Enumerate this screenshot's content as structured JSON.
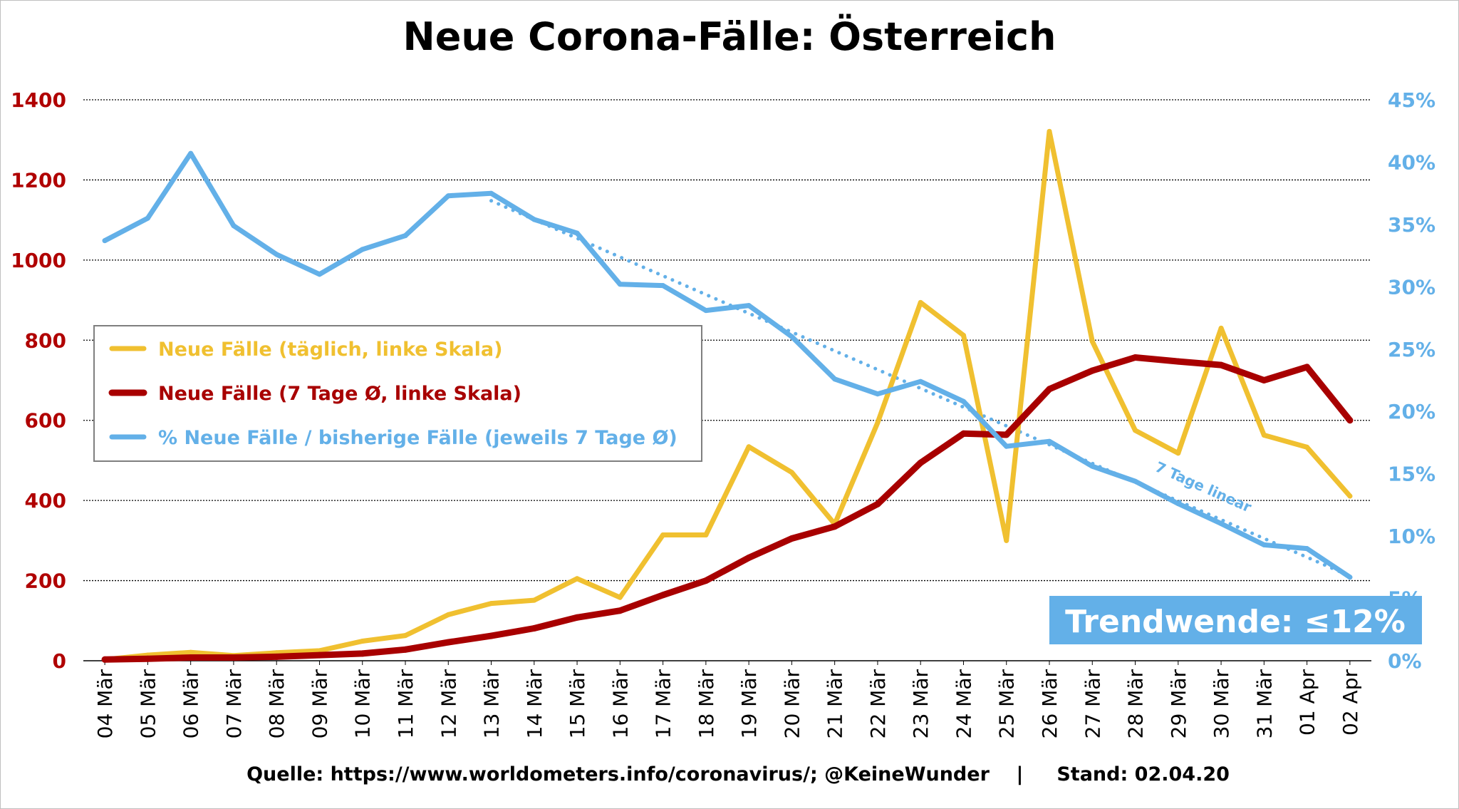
{
  "chart_data": {
    "type": "line",
    "title": "Neue Corona-Fälle: Österreich",
    "categories": [
      "04 Mär",
      "05 Mär",
      "06 Mär",
      "07 Mär",
      "08 Mär",
      "09 Mär",
      "10 Mär",
      "11 Mär",
      "12 Mär",
      "13 Mär",
      "14 Mär",
      "15 Mär",
      "16 Mär",
      "17 Mär",
      "18 Mär",
      "19 Mär",
      "20 Mär",
      "21 Mär",
      "22 Mär",
      "23 Mär",
      "24 Mär",
      "25 Mär",
      "26 Mär",
      "27 Mär",
      "28 Mär",
      "29 Mär",
      "30 Mär",
      "31 Mär",
      "01 Apr",
      "02 Apr"
    ],
    "y_left": {
      "ticks": [
        "0",
        "200",
        "400",
        "600",
        "800",
        "1000",
        "1200",
        "1400"
      ],
      "ylim": [
        0,
        1400
      ],
      "color": "#b00000"
    },
    "y_right": {
      "ticks": [
        "0%",
        "5%",
        "10%",
        "15%",
        "20%",
        "25%",
        "30%",
        "35%",
        "40%",
        "45%"
      ],
      "ylim": [
        0,
        45
      ],
      "color": "#63b0e8"
    },
    "grid": "horizontal dotted",
    "legend_position": "left-middle",
    "series": [
      {
        "name": "Neue Fälle (täglich, linke Skala)",
        "axis": "left",
        "color": "#f0c030",
        "values": [
          3,
          14,
          21,
          13,
          20,
          25,
          49,
          63,
          115,
          143,
          151,
          205,
          158,
          314,
          314,
          534,
          470,
          341,
          594,
          894,
          812,
          300,
          1321,
          797,
          575,
          518,
          830,
          563,
          533,
          411
        ]
      },
      {
        "name": "Neue Fälle (7 Tage Ø, linke Skala)",
        "axis": "left",
        "color": "#a80000",
        "values": [
          3,
          5,
          8,
          8,
          10,
          14,
          18,
          28,
          46,
          62,
          81,
          108,
          125,
          164,
          200,
          257,
          305,
          335,
          391,
          494,
          567,
          564,
          678,
          724,
          757,
          747,
          738,
          700,
          733,
          600
        ]
      },
      {
        "name": "% Neue Fälle / bisherige Fälle (jeweils 7 Tage Ø)",
        "axis": "right",
        "color": "#63b0e8",
        "values": [
          33.7,
          35.5,
          40.7,
          34.9,
          32.6,
          31.0,
          33.0,
          34.1,
          37.3,
          37.5,
          35.4,
          34.3,
          30.2,
          30.1,
          28.1,
          28.5,
          26.0,
          22.6,
          21.4,
          22.4,
          20.8,
          17.2,
          17.6,
          15.6,
          14.4,
          12.6,
          11.0,
          9.3,
          9.0,
          6.7
        ]
      }
    ],
    "trendline": {
      "label": "7 Tage linear",
      "axis": "right",
      "color": "#63b0e8",
      "x": [
        "13 Mär",
        "02 Apr"
      ],
      "values": [
        36.9,
        6.8
      ]
    },
    "callout": {
      "text": "Trendwende: ≤12%",
      "background": "#63b0e8"
    },
    "source": "Quelle: https://www.worldometers.info/coronavirus/; @KeineWunder    |     Stand: 02.04.20"
  }
}
